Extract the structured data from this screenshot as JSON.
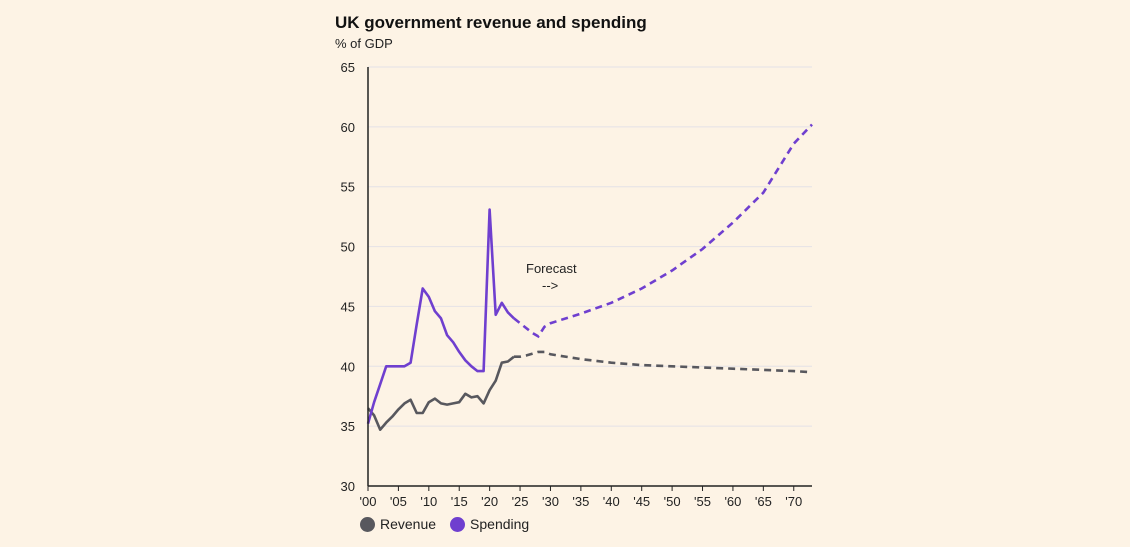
{
  "chart_data": {
    "type": "line",
    "title": "UK government revenue and spending",
    "subtitle": "% of GDP",
    "xlabel": "",
    "ylabel": "",
    "xlim": [
      2000,
      2073
    ],
    "ylim": [
      30,
      65
    ],
    "yticks": [
      30,
      35,
      40,
      45,
      50,
      55,
      60,
      65
    ],
    "xticks": [
      2000,
      2005,
      2010,
      2015,
      2020,
      2025,
      2030,
      2035,
      2040,
      2045,
      2050,
      2055,
      2060,
      2065,
      2070
    ],
    "xtick_labels": [
      "'00",
      "'05",
      "'10",
      "'15",
      "'20",
      "'25",
      "'30",
      "'35",
      "'40",
      "'45",
      "'50",
      "'55",
      "'60",
      "'65",
      "'70"
    ],
    "grid": true,
    "legend_position": "bottom-left",
    "forecast_start": 2024,
    "annotation": {
      "text": "Forecast",
      "arrow": "-->"
    },
    "series": [
      {
        "name": "Revenue",
        "color": "#58585e",
        "x": [
          2000,
          2001,
          2002,
          2003,
          2004,
          2005,
          2006,
          2007,
          2008,
          2009,
          2010,
          2011,
          2012,
          2013,
          2014,
          2015,
          2016,
          2017,
          2018,
          2019,
          2020,
          2021,
          2022,
          2023,
          2024,
          2025,
          2026,
          2028,
          2029,
          2030,
          2035,
          2040,
          2045,
          2050,
          2055,
          2060,
          2065,
          2070,
          2073
        ],
        "values": [
          36.5,
          35.9,
          34.7,
          35.3,
          35.8,
          36.4,
          36.9,
          37.2,
          36.1,
          36.1,
          37.0,
          37.3,
          36.9,
          36.8,
          36.9,
          37.0,
          37.7,
          37.4,
          37.5,
          36.9,
          38.0,
          38.8,
          40.3,
          40.4,
          40.8,
          40.8,
          40.9,
          41.2,
          41.2,
          41.0,
          40.6,
          40.3,
          40.1,
          40.0,
          39.9,
          39.8,
          39.7,
          39.6,
          39.5
        ]
      },
      {
        "name": "Spending",
        "color": "#6f3fcf",
        "x": [
          2000,
          2001,
          2002,
          2003,
          2004,
          2005,
          2006,
          2007,
          2008,
          2009,
          2010,
          2011,
          2012,
          2013,
          2014,
          2015,
          2016,
          2017,
          2018,
          2019,
          2020,
          2021,
          2022,
          2023,
          2024,
          2025,
          2026,
          2027,
          2028,
          2029,
          2030,
          2035,
          2040,
          2045,
          2050,
          2055,
          2060,
          2065,
          2070,
          2073
        ],
        "values": [
          35.2,
          37.0,
          38.5,
          40.0,
          40.0,
          40.0,
          40.0,
          40.3,
          43.5,
          46.5,
          45.8,
          44.6,
          44.0,
          42.6,
          42.0,
          41.2,
          40.5,
          40.0,
          39.6,
          39.6,
          53.1,
          44.3,
          45.3,
          44.5,
          44.0,
          43.6,
          43.2,
          42.8,
          42.5,
          43.3,
          43.6,
          44.4,
          45.3,
          46.5,
          48.0,
          49.8,
          52.0,
          54.5,
          58.6,
          60.2
        ]
      }
    ]
  }
}
